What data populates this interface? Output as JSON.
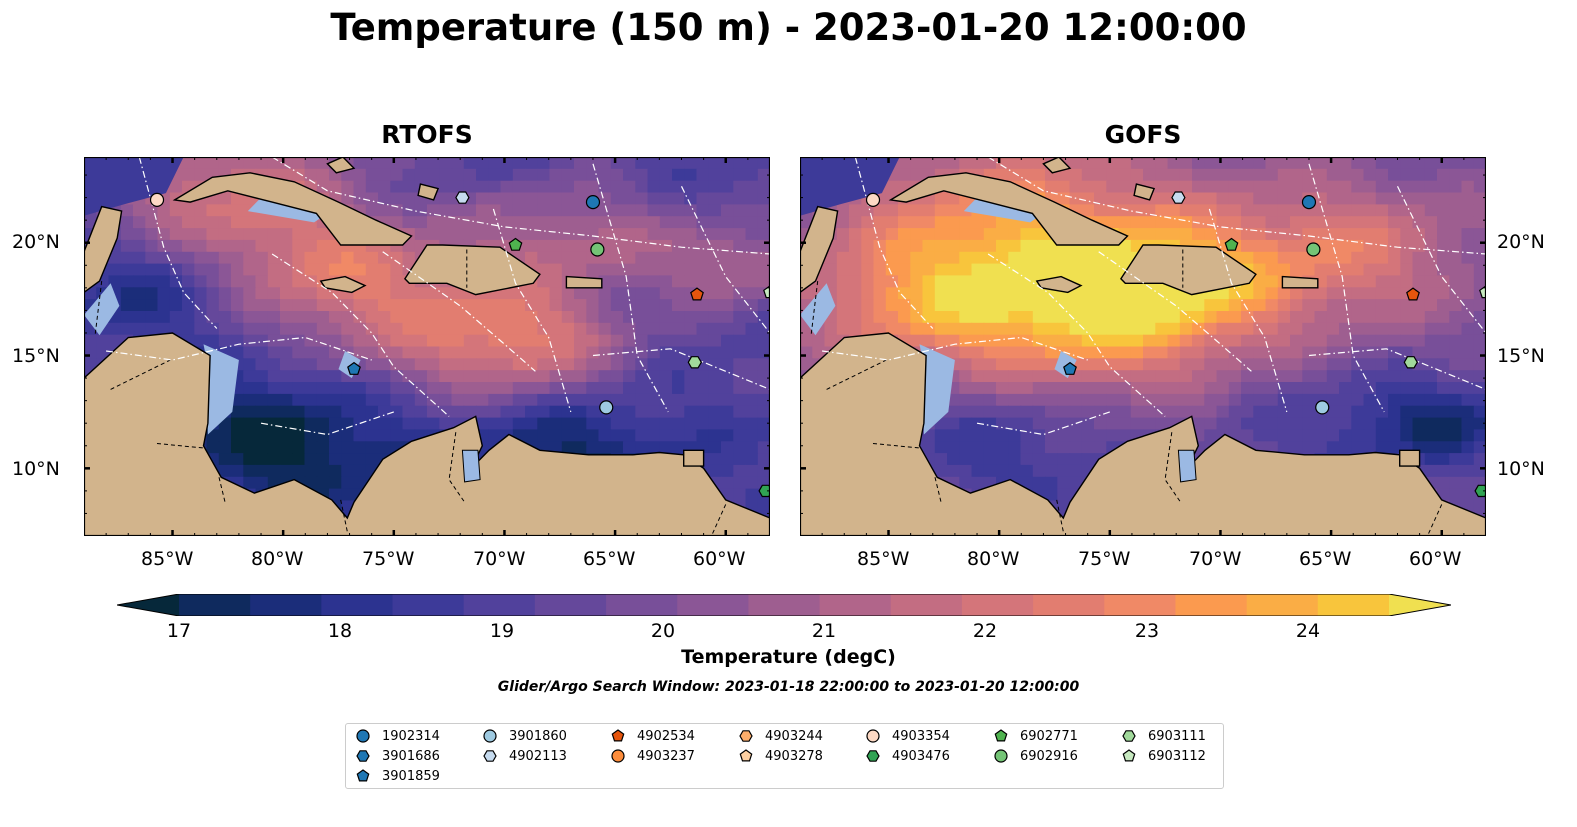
{
  "title": "Temperature (150 m) - 2023-01-20 12:00:00",
  "panels": [
    {
      "id": "left",
      "title": "RTOFS"
    },
    {
      "id": "right",
      "title": "GOFS"
    }
  ],
  "axes": {
    "lon_ticks": [
      "85°W",
      "80°W",
      "75°W",
      "70°W",
      "65°W",
      "60°W"
    ],
    "lat_ticks": [
      "20°N",
      "15°N",
      "10°N"
    ]
  },
  "colorbar": {
    "title": "Temperature (degC)",
    "ticks": [
      "17",
      "18",
      "19",
      "20",
      "21",
      "22",
      "23",
      "24"
    ],
    "min": 17,
    "max": 24.5,
    "step": 0.5,
    "colors": [
      "#06283a",
      "#0f2a5e",
      "#1b2d7a",
      "#2c3390",
      "#3d3a99",
      "#51419c",
      "#65489b",
      "#784f99",
      "#8b5696",
      "#9e5e90",
      "#b1658a",
      "#c36d82",
      "#d4757a",
      "#e27d70",
      "#f08966",
      "#fb9a4f",
      "#faad45",
      "#f8c53c",
      "#f0e050"
    ]
  },
  "search_window": "Glider/Argo Search Window: 2023-01-18 22:00:00 to 2023-01-20 12:00:00",
  "legend": [
    {
      "label": "1902314",
      "marker": "circle",
      "color": "#1f77b4"
    },
    {
      "label": "3901686",
      "marker": "hexagon",
      "color": "#1f77b4"
    },
    {
      "label": "3901859",
      "marker": "pentagon",
      "color": "#1f77b4"
    },
    {
      "label": "3901860",
      "marker": "circle",
      "color": "#9ecae1"
    },
    {
      "label": "4902113",
      "marker": "hexagon",
      "color": "#c6dbef"
    },
    {
      "label": "4902534",
      "marker": "pentagon",
      "color": "#e6550d"
    },
    {
      "label": "4903237",
      "marker": "circle",
      "color": "#fd8d3c"
    },
    {
      "label": "4903244",
      "marker": "hexagon",
      "color": "#fdae6b"
    },
    {
      "label": "4903278",
      "marker": "pentagon",
      "color": "#fdd0a2"
    },
    {
      "label": "4903354",
      "marker": "circle",
      "color": "#fdd9c4"
    },
    {
      "label": "4903476",
      "marker": "hexagon",
      "color": "#31a354"
    },
    {
      "label": "6902771",
      "marker": "pentagon",
      "color": "#4fb34f"
    },
    {
      "label": "6902916",
      "marker": "circle",
      "color": "#74c476"
    },
    {
      "label": "6903111",
      "marker": "hexagon",
      "color": "#a1d99b"
    },
    {
      "label": "6903112",
      "marker": "pentagon",
      "color": "#c7e9c0"
    }
  ],
  "floats": [
    {
      "id": "4903354",
      "lon": -85.7,
      "lat": 21.9
    },
    {
      "id": "1902314",
      "lon": -66.0,
      "lat": 21.8
    },
    {
      "id": "4902113",
      "lon": -71.9,
      "lat": 22.0
    },
    {
      "id": "6902771",
      "lon": -69.5,
      "lat": 19.9
    },
    {
      "id": "6902916",
      "lon": -65.8,
      "lat": 19.7
    },
    {
      "id": "4902534",
      "lon": -61.3,
      "lat": 17.7
    },
    {
      "id": "6903112",
      "lon": -58.0,
      "lat": 17.8
    },
    {
      "id": "6903111",
      "lon": -61.4,
      "lat": 14.7
    },
    {
      "id": "3901859",
      "lon": -76.8,
      "lat": 14.4
    },
    {
      "id": "3901860",
      "lon": -65.4,
      "lat": 12.7
    },
    {
      "id": "4903476",
      "lon": -58.2,
      "lat": 9.0
    }
  ]
}
